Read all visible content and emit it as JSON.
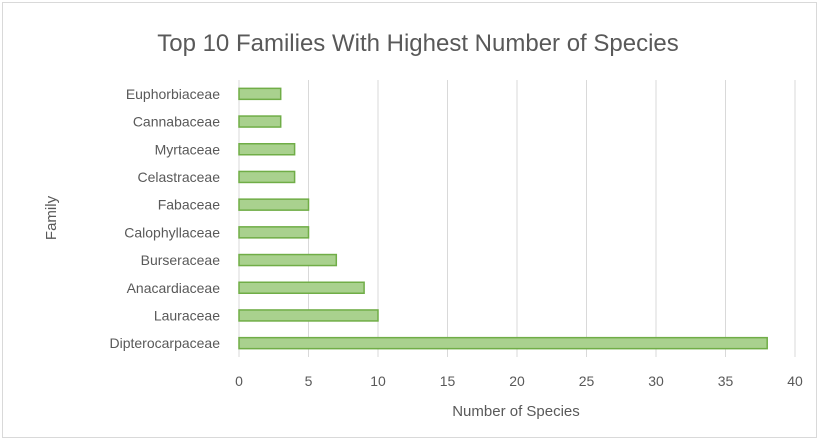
{
  "chart_data": {
    "type": "bar",
    "orientation": "horizontal",
    "title": "Top 10 Families With Highest Number of Species",
    "xlabel": "Number of Species",
    "ylabel": "Family",
    "xlim": [
      0,
      40
    ],
    "x_ticks": [
      "0",
      "5",
      "10",
      "15",
      "20",
      "25",
      "30",
      "35",
      "40"
    ],
    "grid": "vertical",
    "legend": "none",
    "categories": [
      "Dipterocarpaceae",
      "Lauraceae",
      "Anacardiaceae",
      "Burseraceae",
      "Calophyllaceae",
      "Fabaceae",
      "Celastraceae",
      "Myrtaceae",
      "Cannabaceae",
      "Euphorbiaceae"
    ],
    "values": [
      38,
      10,
      9,
      7,
      5,
      5,
      4,
      4,
      3,
      3
    ],
    "colors": {
      "bar_fill": "#a9d18e",
      "bar_stroke": "#70ad47",
      "grid": "#d9d9d9",
      "text": "#595959"
    }
  }
}
